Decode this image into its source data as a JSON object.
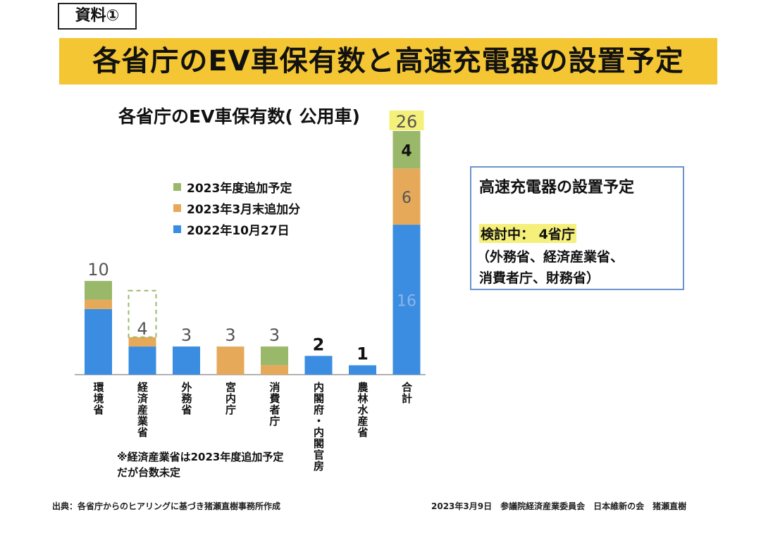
{
  "tag": "資料①",
  "title": "各省庁のEV車保有数と高速充電器の設置予定",
  "colors": {
    "banner": "#f4c633",
    "current": "#3a8de0",
    "march": "#e6a95a",
    "fy2023": "#9ab86a",
    "highlight": "#f5f07a",
    "box_border": "#6b94cc"
  },
  "chart_data": {
    "type": "bar",
    "stacked": true,
    "title": "各省庁のEV車保有数( 公用車)",
    "categories": [
      "環境省",
      "経済産業省",
      "外務省",
      "宮内庁",
      "消費者庁",
      "内閣府・内閣官房",
      "農林水産省",
      "合計"
    ],
    "series": [
      {
        "name": "2022年10月27日",
        "color": "#3a8de0",
        "values": [
          7,
          3,
          3,
          0,
          0,
          2,
          1,
          16
        ]
      },
      {
        "name": "2023年3月末追加分",
        "color": "#e6a95a",
        "values": [
          1,
          1,
          0,
          3,
          1,
          0,
          0,
          6
        ]
      },
      {
        "name": "2023年度追加予定",
        "color": "#9ab86a",
        "values": [
          2,
          0,
          0,
          0,
          2,
          0,
          0,
          4
        ]
      }
    ],
    "totals": [
      "10",
      "4",
      "3",
      "3",
      "3",
      "2",
      "1",
      "26"
    ],
    "segment_labels": [
      {
        "category": "合計",
        "labels": [
          "16",
          "6",
          "4"
        ]
      }
    ],
    "legend_order": [
      "2023年度追加予定",
      "2023年3月末追加分",
      "2022年10月27日"
    ],
    "ylim": [
      0,
      26
    ]
  },
  "note": "※経済産業省は2023年度追加予定だが台数未定",
  "charger": {
    "title": "高速充電器の設置予定",
    "status": "検討中：  4省庁",
    "detail_line1": "（外務省、経済産業省、",
    "detail_line2": "消費者庁、財務省）"
  },
  "source": "出典：各省庁からのヒアリングに基づき猪瀬直樹事務所作成",
  "footer": "2023年3月9日　参議院経済産業委員会　日本維新の会　猪瀬直樹"
}
